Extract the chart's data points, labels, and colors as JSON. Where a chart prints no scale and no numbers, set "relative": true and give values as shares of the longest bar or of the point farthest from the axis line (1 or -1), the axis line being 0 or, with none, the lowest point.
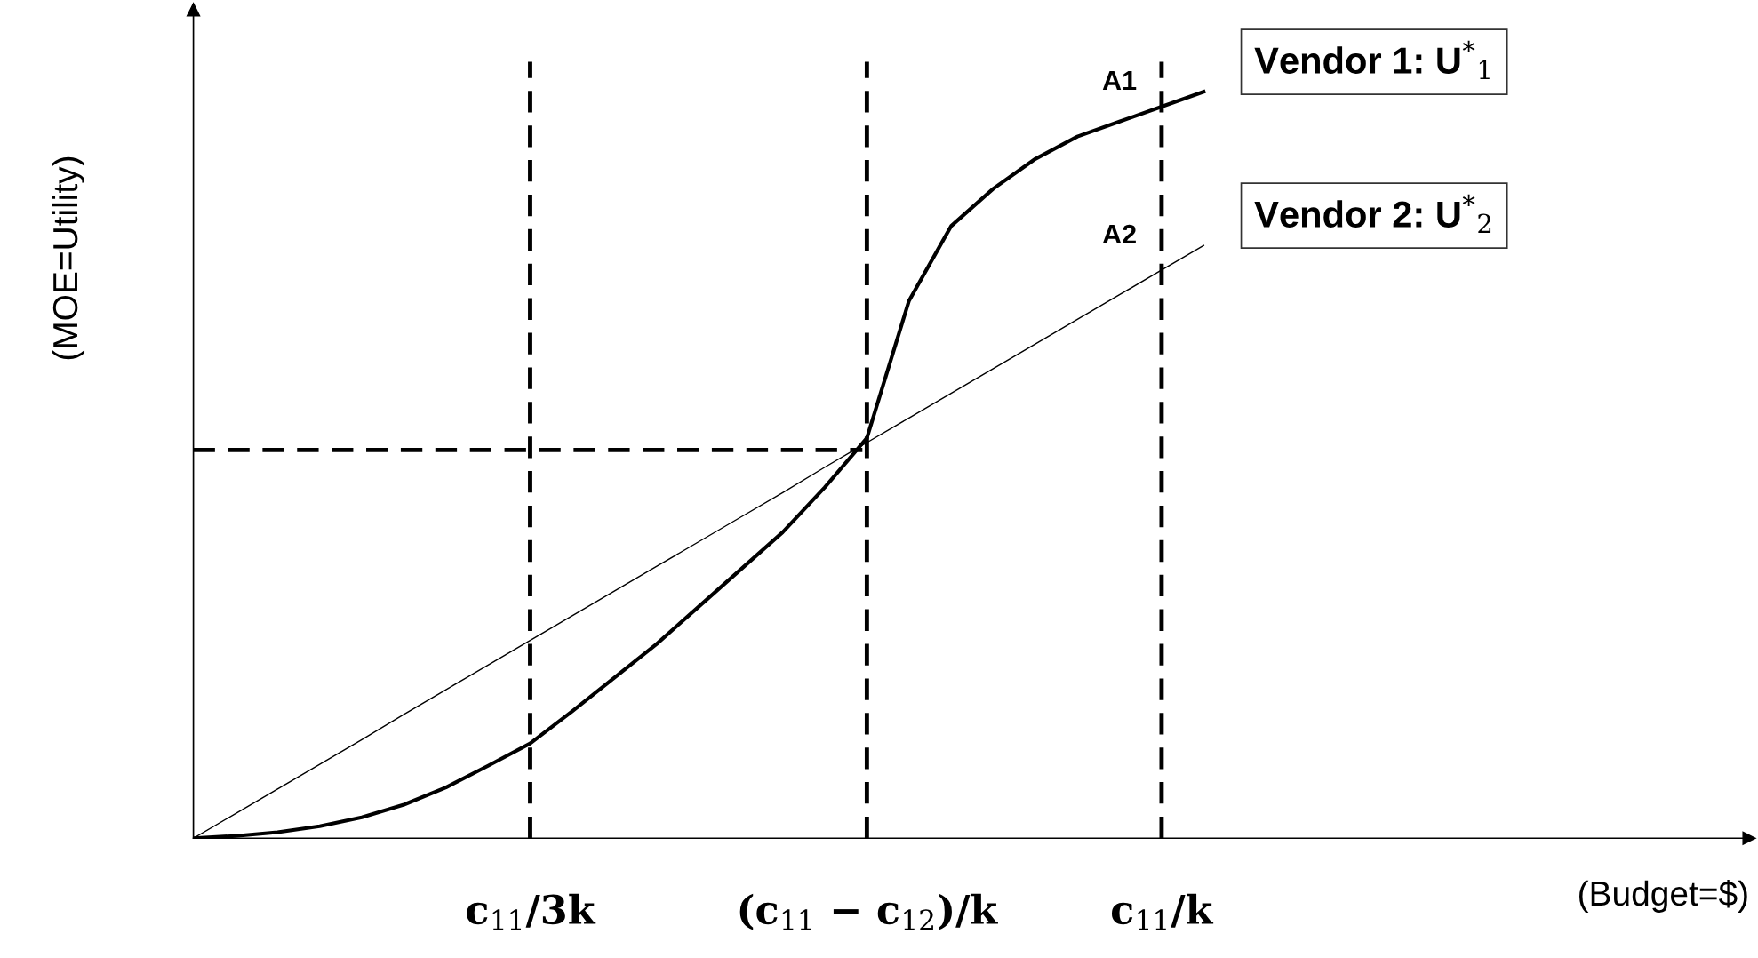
{
  "chart_data": {
    "type": "line",
    "relative": true,
    "ylabel": "(MOE=Utility)",
    "categories": [
      null,
      null,
      null,
      null,
      null,
      null,
      null,
      null,
      "c$_{11}$/3k",
      null,
      null,
      null,
      null,
      null,
      null,
      null,
      "(c$_{11}$ − c$_{12}$)/k",
      null,
      null,
      null,
      null,
      null,
      null,
      "c$_{11}$/k",
      null
    ],
    "series": [
      {
        "name": "Vendor 1: U$^{*}$$_{1}$",
        "color": "#000000",
        "values": [
          0,
          0.003,
          0.008,
          0.016,
          0.028,
          0.045,
          0.068,
          0.097,
          0.127,
          0.17,
          0.215,
          0.26,
          0.31,
          0.36,
          0.41,
          0.47,
          0.536,
          0.72,
          0.82,
          0.87,
          0.91,
          0.94,
          0.96,
          0.98,
          1.0
        ]
      },
      {
        "name": "Vendor 2: U$^{*}$$_{2}$",
        "color": "#000000",
        "values": [
          0,
          0.033,
          0.066,
          0.099,
          0.132,
          0.166,
          0.199,
          0.232,
          0.265,
          0.298,
          0.331,
          0.364,
          0.397,
          0.43,
          0.463,
          0.497,
          0.53,
          0.563,
          0.596,
          0.629,
          0.662,
          0.695,
          0.728,
          0.761,
          0.794
        ]
      }
    ],
    "ref_lines": [
      {
        "axis": "x",
        "value": "c$_{11}$/3k"
      },
      {
        "axis": "x",
        "value": "(c$_{11}$ − c$_{12}$)/k"
      },
      {
        "axis": "x",
        "value": "c$_{11}$/k"
      },
      {
        "axis": "y",
        "value": 0.52
      }
    ],
    "annotations": [
      "A1",
      "A2",
      "(Budget=$)"
    ],
    "legend": false
  }
}
